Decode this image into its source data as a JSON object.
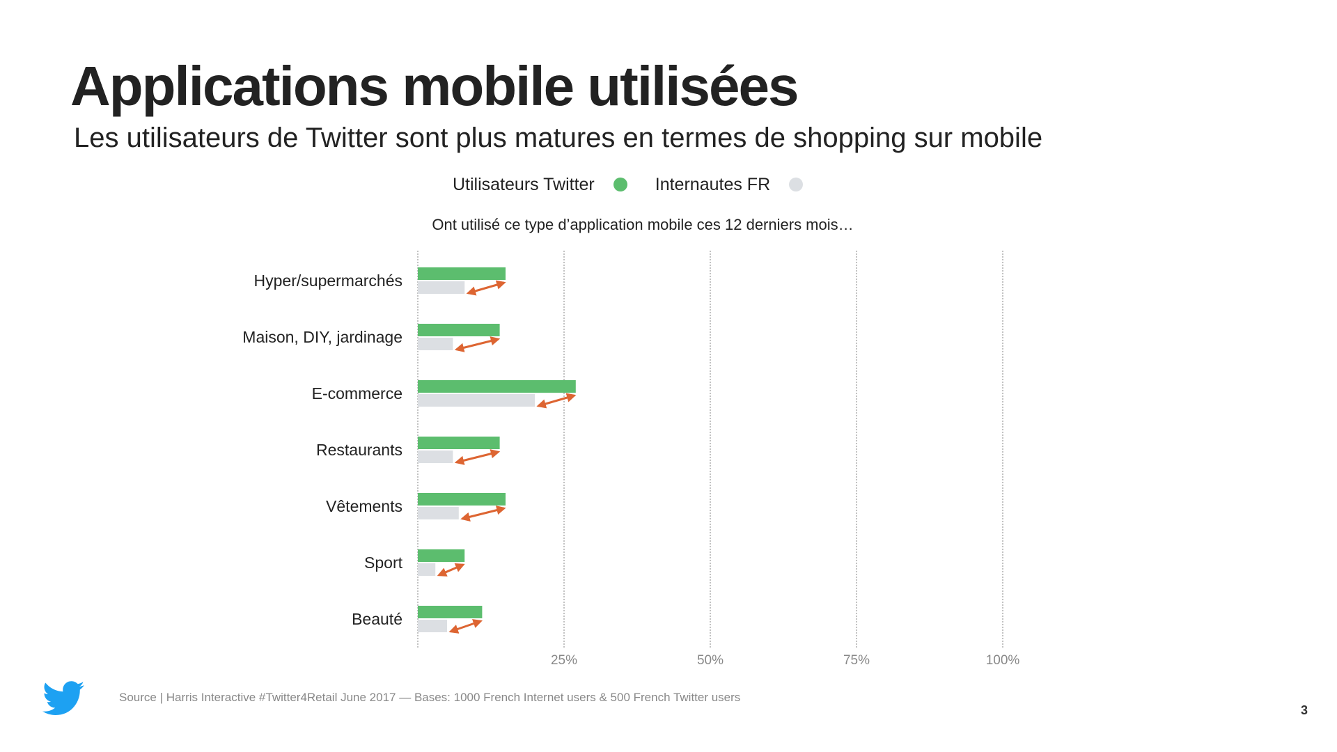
{
  "page": {
    "title": "Applications mobile utilisées",
    "subtitle": "Les utilisateurs de Twitter sont plus matures en termes de shopping sur mobile",
    "question": "Ont utilisé ce type d’application mobile ces 12 derniers mois…",
    "source": "Source | Harris Interactive #Twitter4Retail June 2017 — Bases: 1000 French Internet users & 500 French Twitter users",
    "page_number": "3",
    "logo_icon": "twitter-bird-icon"
  },
  "colors": {
    "twitter": "#5cbd6e",
    "internautes": "#dcdfe3",
    "arrow": "#dd6532",
    "gridline": "#999999",
    "logo": "#1da1f2"
  },
  "legend": [
    {
      "label": "Utilisateurs Twitter",
      "color": "#5cbd6e"
    },
    {
      "label": "Internautes FR",
      "color": "#dcdfe3"
    }
  ],
  "chart_data": {
    "type": "bar",
    "orientation": "horizontal",
    "categories": [
      "Hyper/supermarchés",
      "Maison, DIY, jardinage",
      "E-commerce",
      "Restaurants",
      "Vêtements",
      "Sport",
      "Beauté"
    ],
    "series": [
      {
        "name": "Utilisateurs Twitter",
        "values": [
          15,
          14,
          27,
          14,
          15,
          8,
          11
        ]
      },
      {
        "name": "Internautes FR",
        "values": [
          8,
          6,
          20,
          6,
          7,
          3,
          5
        ]
      }
    ],
    "xlim": [
      0,
      100
    ],
    "xticks": [
      25,
      50,
      75,
      100
    ],
    "xtick_labels": [
      "25%",
      "50%",
      "75%",
      "100%"
    ],
    "grid": true,
    "annotations": "double-headed arrows showing the gap between Internautes FR and Utilisateurs Twitter for each category"
  }
}
